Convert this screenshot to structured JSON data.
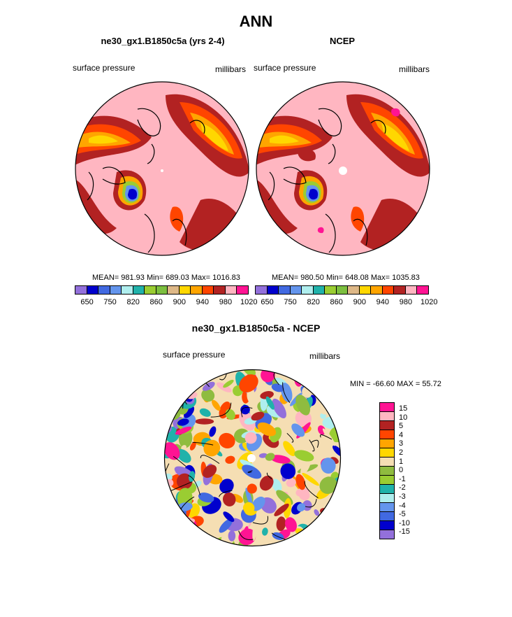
{
  "page": {
    "title": "ANN",
    "bottom_title": "ne30_gx1.B1850c5a - NCEP"
  },
  "panels": [
    {
      "title": "ne30_gx1.B1850c5a (yrs 2-4)",
      "left_label": "surface pressure",
      "right_label": "millibars",
      "stats": "MEAN= 981.93  Min= 689.03  Max= 1016.83",
      "colorbar_ticks": [
        "650",
        "750",
        "820",
        "860",
        "900",
        "940",
        "980",
        "1020"
      ]
    },
    {
      "title": "NCEP",
      "left_label": "surface pressure",
      "right_label": "millibars",
      "stats": "MEAN= 980.50  Min= 648.08  Max= 1035.83",
      "colorbar_ticks": [
        "650",
        "750",
        "820",
        "860",
        "900",
        "940",
        "980",
        "1020"
      ]
    },
    {
      "title": "ne30_gx1.B1850c5a - NCEP",
      "left_label": "surface pressure",
      "right_label": "millibars",
      "stats": "MIN = -66.60 MAX =  55.72",
      "colorbar_ticks": [
        "15",
        "10",
        "5",
        "4",
        "3",
        "2",
        "1",
        "0",
        "-1",
        "-2",
        "-3",
        "-4",
        "-5",
        "-10",
        "-15"
      ]
    }
  ],
  "colors": {
    "abs_scale": [
      "#9370db",
      "#0000cd",
      "#4169e1",
      "#6495ed",
      "#afeeee",
      "#20b2aa",
      "#9acd32",
      "#7cbf3f",
      "#deb887",
      "#ffd700",
      "#ffa500",
      "#ff4500",
      "#b22222",
      "#ffb6c1",
      "#ff1493"
    ],
    "diff_scale": [
      "#ff1493",
      "#ffb6c1",
      "#b22222",
      "#ff4500",
      "#ffa500",
      "#ffd700",
      "#f5deb3",
      "#8fbc3f",
      "#9acd32",
      "#20b2aa",
      "#afeeee",
      "#6495ed",
      "#4169e1",
      "#0000cd",
      "#9370db"
    ],
    "base_pink": "#ffb6c1"
  }
}
